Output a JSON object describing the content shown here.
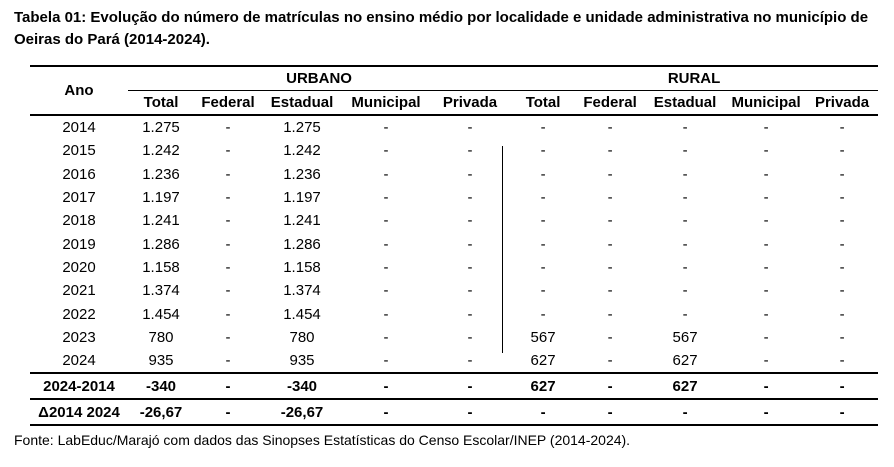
{
  "title": "Tabela 01: Evolução do número de matrículas no ensino médio por localidade e unidade administrativa no município de Oeiras do Pará (2014-2024).",
  "table": {
    "year_header": "Ano",
    "groups": [
      "URBANO",
      "RURAL"
    ],
    "subheaders": [
      "Total",
      "Federal",
      "Estadual",
      "Municipal",
      "Privada",
      "Total",
      "Federal",
      "Estadual",
      "Municipal",
      "Privada"
    ],
    "rows": [
      {
        "year": "2014",
        "cells": [
          "1.275",
          "-",
          "1.275",
          "-",
          "-",
          "-",
          "-",
          "-",
          "-",
          "-"
        ]
      },
      {
        "year": "2015",
        "cells": [
          "1.242",
          "-",
          "1.242",
          "-",
          "-",
          "-",
          "-",
          "-",
          "-",
          "-"
        ]
      },
      {
        "year": "2016",
        "cells": [
          "1.236",
          "-",
          "1.236",
          "-",
          "-",
          "-",
          "-",
          "-",
          "-",
          "-"
        ]
      },
      {
        "year": "2017",
        "cells": [
          "1.197",
          "-",
          "1.197",
          "-",
          "-",
          "-",
          "-",
          "-",
          "-",
          "-"
        ]
      },
      {
        "year": "2018",
        "cells": [
          "1.241",
          "-",
          "1.241",
          "-",
          "-",
          "-",
          "-",
          "-",
          "-",
          "-"
        ]
      },
      {
        "year": "2019",
        "cells": [
          "1.286",
          "-",
          "1.286",
          "-",
          "-",
          "-",
          "-",
          "-",
          "-",
          "-"
        ]
      },
      {
        "year": "2020",
        "cells": [
          "1.158",
          "-",
          "1.158",
          "-",
          "-",
          "-",
          "-",
          "-",
          "-",
          "-"
        ]
      },
      {
        "year": "2021",
        "cells": [
          "1.374",
          "-",
          "1.374",
          "-",
          "-",
          "-",
          "-",
          "-",
          "-",
          "-"
        ]
      },
      {
        "year": "2022",
        "cells": [
          "1.454",
          "-",
          "1.454",
          "-",
          "-",
          "-",
          "-",
          "-",
          "-",
          "-"
        ]
      },
      {
        "year": "2023",
        "cells": [
          "780",
          "-",
          "780",
          "-",
          "-",
          "567",
          "-",
          "567",
          "-",
          "-"
        ]
      },
      {
        "year": "2024",
        "cells": [
          "935",
          "-",
          "935",
          "-",
          "-",
          "627",
          "-",
          "627",
          "-",
          "-"
        ]
      }
    ],
    "summary_rows": [
      {
        "label": "2024-2014",
        "cells": [
          "-340",
          "-",
          "-340",
          "-",
          "-",
          "627",
          "-",
          "627",
          "-",
          "-"
        ]
      },
      {
        "label": "Δ2014 2024",
        "cells": [
          "-26,67",
          "-",
          "-26,67",
          "-",
          "-",
          "-",
          "-",
          "-",
          "-",
          "-"
        ]
      }
    ]
  },
  "source": "Fonte: LabEduc/Marajó com dados das Sinopses Estatísticas do Censo Escolar/INEP (2014-2024)."
}
